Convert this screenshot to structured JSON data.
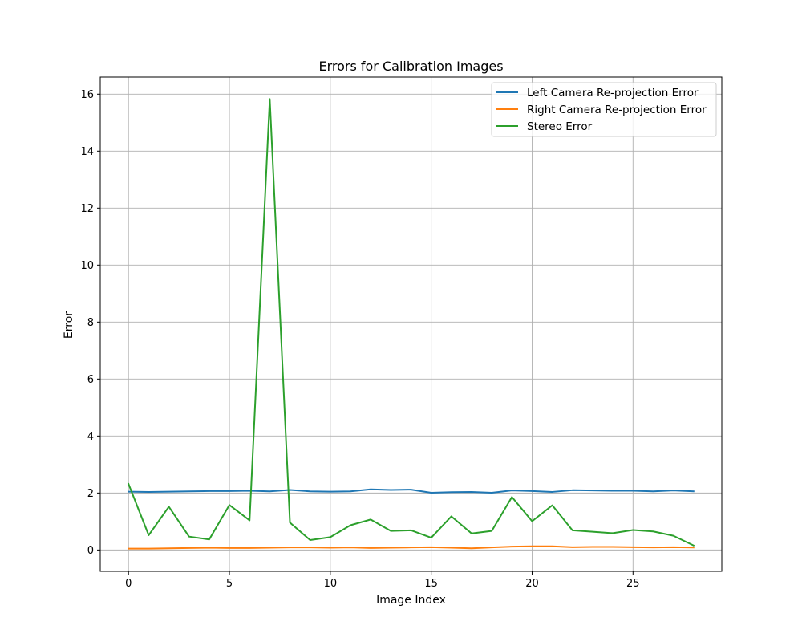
{
  "chart_data": {
    "type": "line",
    "title": "Errors for Calibration Images",
    "xlabel": "Image Index",
    "ylabel": "Error",
    "xlim": [
      -1.4,
      29.4
    ],
    "ylim": [
      -0.75,
      16.6
    ],
    "xticks": [
      0,
      5,
      10,
      15,
      20,
      25
    ],
    "yticks": [
      0,
      2,
      4,
      6,
      8,
      10,
      12,
      14,
      16
    ],
    "grid": true,
    "legend_position": "upper right",
    "x": [
      0,
      1,
      2,
      3,
      4,
      5,
      6,
      7,
      8,
      9,
      10,
      11,
      12,
      13,
      14,
      15,
      16,
      17,
      18,
      19,
      20,
      21,
      22,
      23,
      24,
      25,
      26,
      27,
      28
    ],
    "series": [
      {
        "name": "Left Camera Re-projection Error",
        "color": "#1f77b4",
        "values": [
          2.05,
          2.04,
          2.05,
          2.06,
          2.07,
          2.07,
          2.08,
          2.06,
          2.11,
          2.06,
          2.05,
          2.06,
          2.13,
          2.11,
          2.12,
          2.01,
          2.03,
          2.04,
          2.01,
          2.09,
          2.07,
          2.04,
          2.1,
          2.09,
          2.08,
          2.08,
          2.06,
          2.09,
          2.06
        ]
      },
      {
        "name": "Right Camera Re-projection Error",
        "color": "#ff7f0e",
        "values": [
          0.05,
          0.05,
          0.06,
          0.07,
          0.08,
          0.07,
          0.07,
          0.08,
          0.09,
          0.09,
          0.08,
          0.09,
          0.07,
          0.08,
          0.09,
          0.1,
          0.08,
          0.06,
          0.09,
          0.12,
          0.13,
          0.13,
          0.1,
          0.11,
          0.11,
          0.1,
          0.09,
          0.1,
          0.09
        ]
      },
      {
        "name": "Stereo Error",
        "color": "#2ca02c",
        "values": [
          2.32,
          0.52,
          1.52,
          0.47,
          0.37,
          1.58,
          1.04,
          15.83,
          0.96,
          0.35,
          0.45,
          0.87,
          1.07,
          0.67,
          0.69,
          0.43,
          1.18,
          0.58,
          0.67,
          1.86,
          1.01,
          1.57,
          0.69,
          0.64,
          0.59,
          0.7,
          0.65,
          0.5,
          0.16
        ]
      }
    ]
  }
}
